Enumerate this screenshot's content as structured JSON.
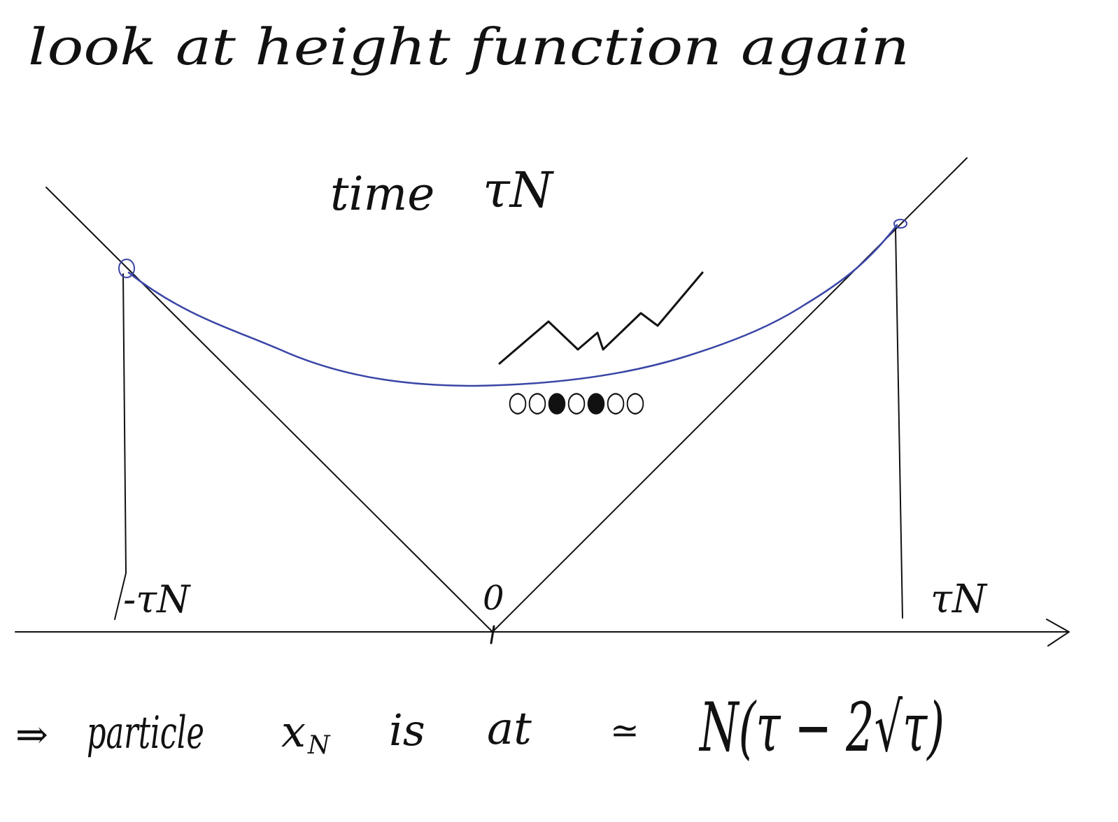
{
  "heading": "look at height function again",
  "time_label": "time",
  "time_value": "τN",
  "axis": {
    "left_label": "-τN",
    "origin_label": "0",
    "right_label": "τN"
  },
  "particles": {
    "row": "○○●○●○○"
  },
  "conclusion": {
    "implies": "⇒",
    "word_particle": "particle",
    "symbol": "x",
    "subscript": "N",
    "word_is": "is",
    "word_at": "at",
    "approx": "≃",
    "formula": "N(τ − 2√τ)"
  },
  "colors": {
    "ink": "#111111",
    "curve": "#3a46a6"
  }
}
